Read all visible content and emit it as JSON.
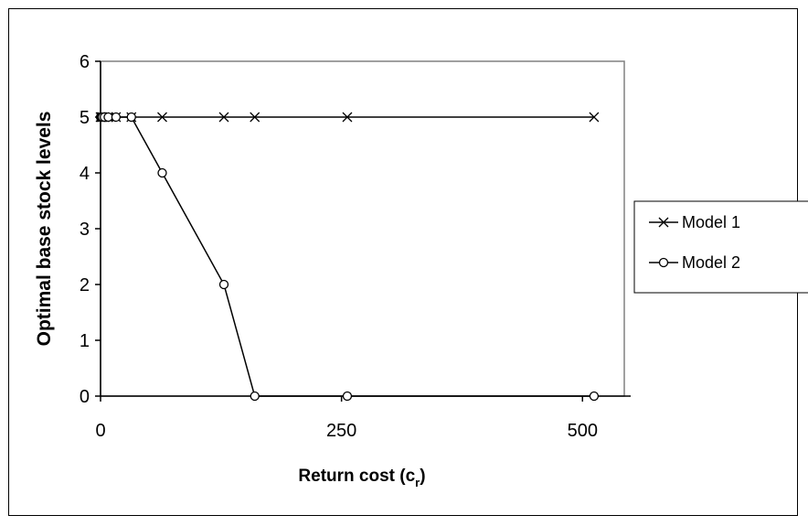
{
  "chart_data": {
    "type": "line",
    "title": "",
    "xlabel": "Return cost (c",
    "xlabel_sub": "r",
    "xlabel_close": ")",
    "ylabel": "Optimal base stock levels",
    "xlim": [
      0,
      550
    ],
    "ylim": [
      0,
      6
    ],
    "xticks": [
      0,
      250,
      500
    ],
    "yticks": [
      0,
      1,
      2,
      3,
      4,
      5,
      6
    ],
    "grid": false,
    "legend_position": "right",
    "series": [
      {
        "name": "Model 1",
        "marker": "x",
        "color": "#000000",
        "x": [
          0,
          1,
          2,
          4,
          8,
          16,
          32,
          64,
          128,
          160,
          256,
          512
        ],
        "y": [
          5,
          5,
          5,
          5,
          5,
          5,
          5,
          5,
          5,
          5,
          5,
          5
        ]
      },
      {
        "name": "Model 2",
        "marker": "circle",
        "color": "#000000",
        "x": [
          0,
          1,
          2,
          4,
          8,
          16,
          32,
          64,
          128,
          160,
          256,
          512
        ],
        "y": [
          5,
          5,
          5,
          5,
          5,
          5,
          5,
          4,
          2,
          0,
          0,
          0
        ]
      }
    ]
  }
}
